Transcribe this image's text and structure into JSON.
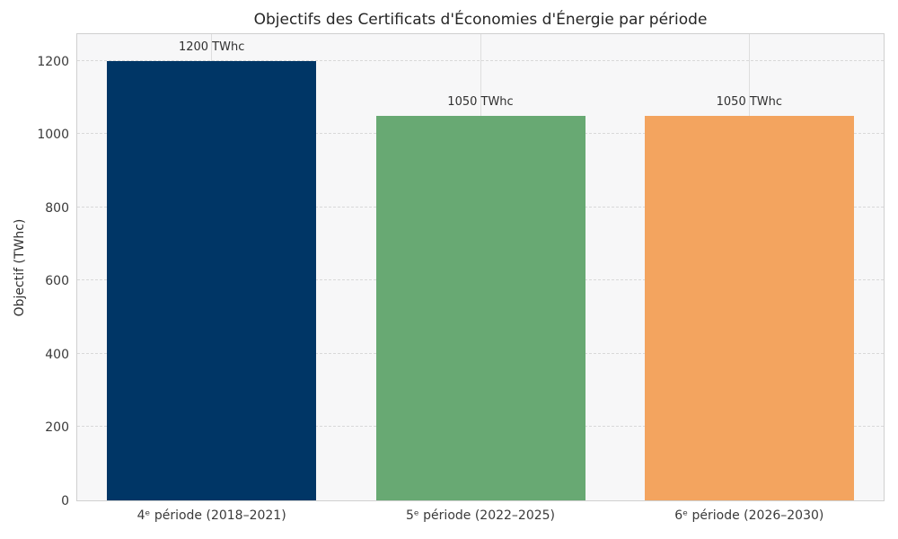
{
  "chart_data": {
    "type": "bar",
    "title": "Objectifs des Certificats d'Économies d'Énergie par période",
    "xlabel": "",
    "ylabel": "Objectif (TWhc)",
    "categories": [
      "4ᵉ période (2018–2021)",
      "5ᵉ période (2022–2025)",
      "6ᵉ période (2026–2030)"
    ],
    "values": [
      1200,
      1050,
      1050
    ],
    "value_labels": [
      "1200 TWhc",
      "1050 TWhc",
      "1050 TWhc"
    ],
    "bar_colors": [
      "#003666",
      "#68a973",
      "#f3a45f"
    ],
    "yticks": [
      0,
      200,
      400,
      600,
      800,
      1000,
      1200
    ],
    "ylim": [
      0,
      1273
    ],
    "grid": {
      "horizontal": "dashed",
      "vertical": "solid"
    },
    "legend_position": "none",
    "panel_background": "#f7f7f8"
  }
}
